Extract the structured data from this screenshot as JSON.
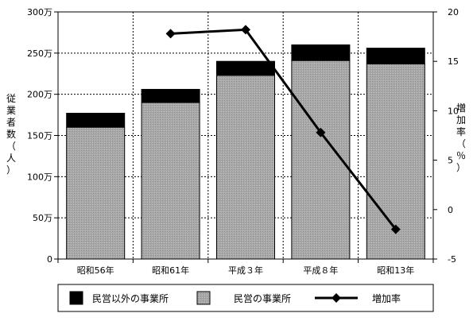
{
  "chart_data": {
    "type": "bar",
    "categories": [
      "昭和56年",
      "昭和61年",
      "平成３年",
      "平成８年",
      "昭和13年"
    ],
    "series": [
      {
        "name": "民営の事業所",
        "kind": "bar",
        "values": [
          160,
          190,
          223,
          241,
          237
        ],
        "color": "#a0a0a0"
      },
      {
        "name": "民営以外の事業所",
        "kind": "bar",
        "values": [
          17,
          16,
          17,
          19,
          19
        ],
        "color": "#000000"
      },
      {
        "name": "増加率",
        "kind": "line",
        "axis": "right",
        "values": [
          null,
          17.8,
          18.2,
          7.8,
          -2.0
        ],
        "color": "#000000"
      }
    ],
    "ylabel": "従業者数（人）",
    "y2label": "増加率（％）",
    "ylim": [
      0,
      300
    ],
    "y2lim": [
      -5,
      20
    ],
    "yticks": [
      "0",
      "50万",
      "100万",
      "150万",
      "200万",
      "250万",
      "300万"
    ],
    "y2ticks": [
      "-5",
      "0",
      "5",
      "10",
      "15",
      "20"
    ],
    "stacked": true,
    "grid": true,
    "legend": "bottom"
  }
}
